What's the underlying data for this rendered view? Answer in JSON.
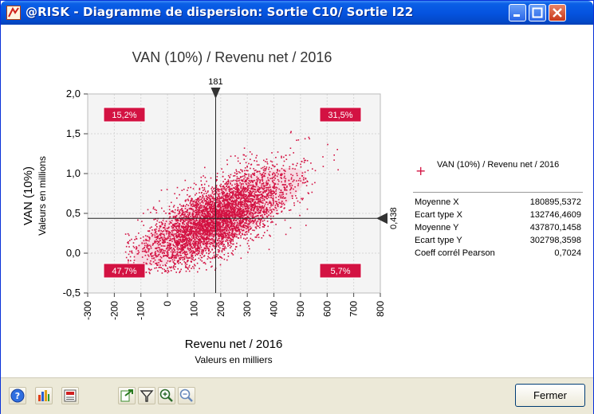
{
  "window": {
    "title": "@RISK - Diagramme de dispersion: Sortie C10/ Sortie I22"
  },
  "colors": {
    "titlebar": "#0554e0",
    "points": "#d31242",
    "ellipse": "#f6d5dd",
    "label_bg": "#d31242",
    "plot_bg": "#f4f4f4"
  },
  "chart_data": {
    "type": "scatter",
    "title": "VAN (10%) / Revenu net / 2016",
    "xlabel": "Revenu net / 2016",
    "xsublabel": "Valeurs en milliers",
    "ylabel": "VAN (10%)",
    "ysublabel": "Valeurs en millions",
    "xlim": [
      -300,
      800
    ],
    "ylim": [
      -0.5,
      2.0
    ],
    "xticks": [
      "-300",
      "-200",
      "-100",
      "0",
      "100",
      "200",
      "300",
      "400",
      "500",
      "600",
      "700",
      "800"
    ],
    "yticks": [
      "2,0",
      "1,5",
      "1,0",
      "0,5",
      "0,0",
      "-0,5"
    ],
    "grid": true,
    "crosshair": {
      "x": 181,
      "y": 0.438,
      "x_label": "181",
      "y_label": "0,438"
    },
    "quadrants": {
      "top_left": "15,2%",
      "top_right": "31,5%",
      "bottom_left": "47,7%",
      "bottom_right": "5,7%"
    },
    "series": [
      {
        "name": "VAN (10%) / Revenu net / 2016",
        "mean_x": 180.895,
        "mean_y": 0.43787,
        "sd_x": 132.746,
        "sd_y": 0.302798,
        "correlation": 0.7024,
        "n_points_approx": 5000
      }
    ]
  },
  "legend": {
    "series_label": "VAN (10%) / Revenu net / 2016",
    "stats": [
      {
        "name": "Moyenne X",
        "value": "180895,5372"
      },
      {
        "name": "Ecart type X",
        "value": "132746,4609"
      },
      {
        "name": "Moyenne Y",
        "value": "437870,1458"
      },
      {
        "name": "Ecart type Y",
        "value": "302798,3598"
      },
      {
        "name": "Coeff corrél Pearson",
        "value": "0,7024"
      }
    ]
  },
  "toolbar": {
    "icons": [
      "help-icon",
      "histogram-icon",
      "report-icon",
      "export-icon",
      "filter-icon",
      "zoom-in-icon",
      "zoom-out-icon"
    ],
    "close_label": "Fermer"
  }
}
